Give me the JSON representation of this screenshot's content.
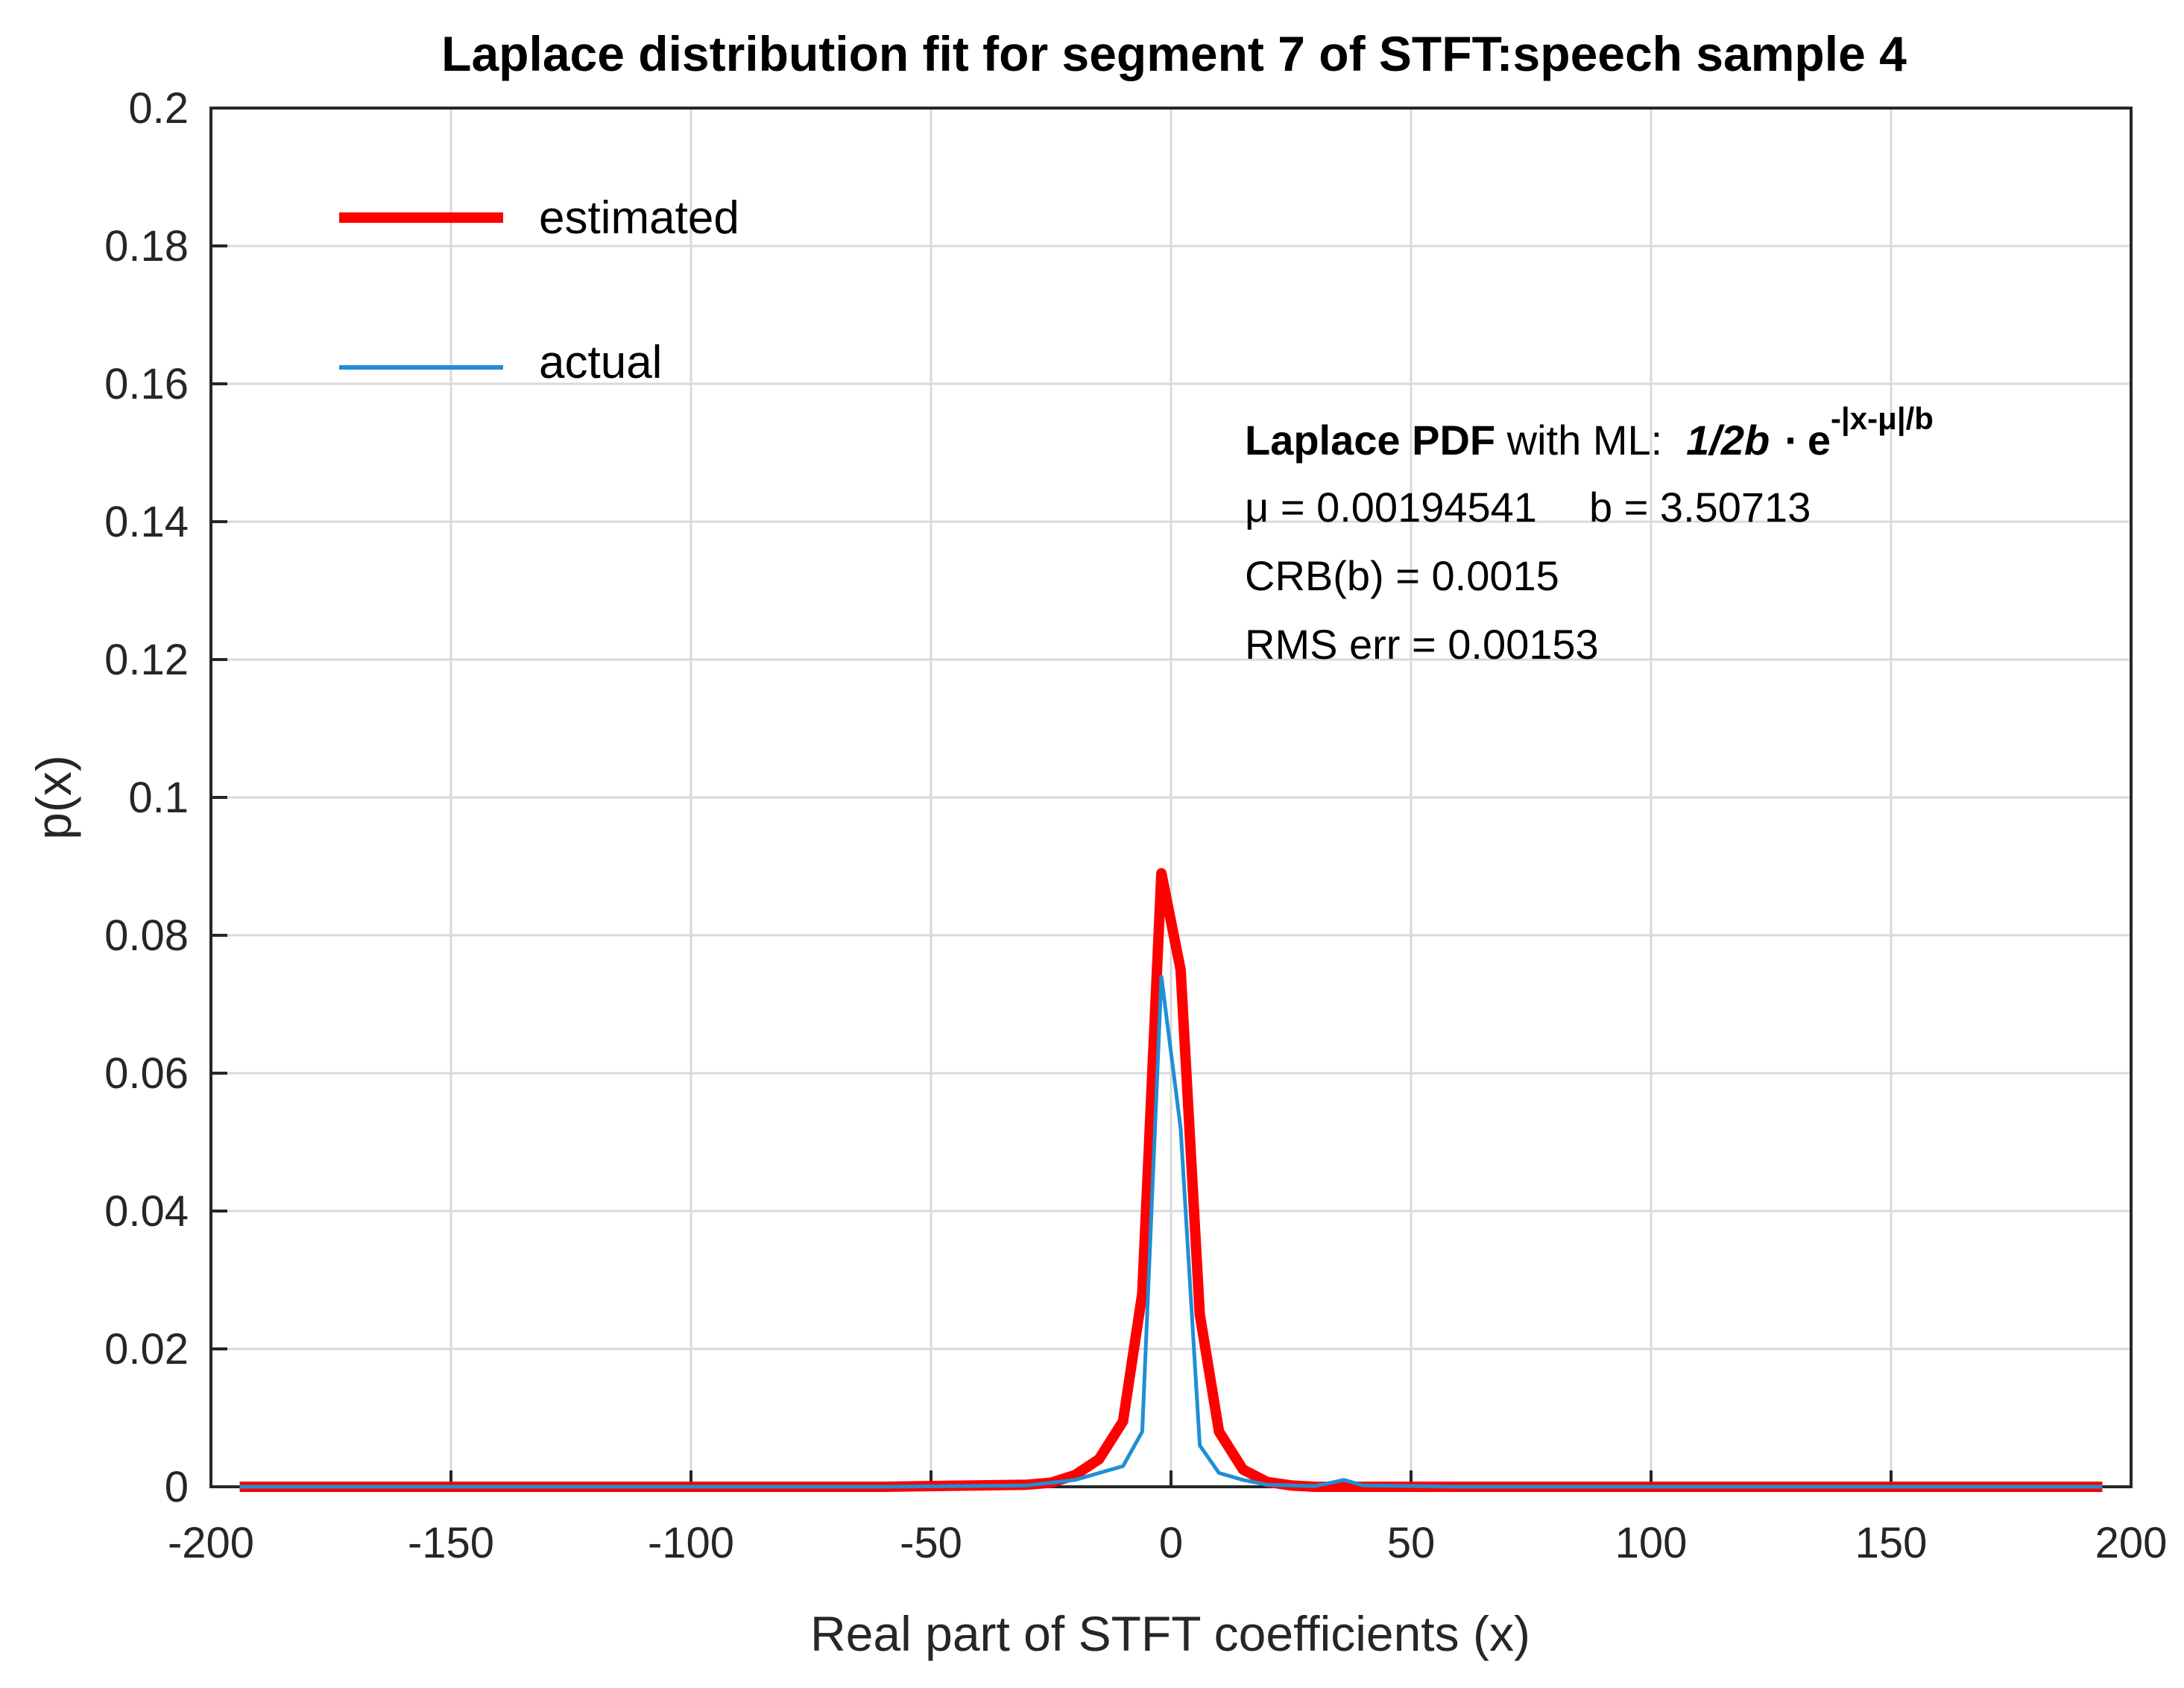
{
  "chart_data": {
    "type": "line",
    "title": "Laplace distribution fit for segment 7 of STFT:speech sample 4",
    "xlabel": "Real part of STFT coefficients (x)",
    "ylabel": "p(x)",
    "xlim": [
      -200,
      200
    ],
    "ylim": [
      0,
      0.2
    ],
    "grid": true,
    "legend_position": "top-left",
    "x_ticks": [
      -200,
      -150,
      -100,
      -50,
      0,
      50,
      100,
      150,
      200
    ],
    "x_tick_labels": [
      "-200",
      "-150",
      "-100",
      "-50",
      "0",
      "50",
      "100",
      "150",
      "200"
    ],
    "y_ticks": [
      0,
      0.02,
      0.04,
      0.06,
      0.08,
      0.1,
      0.12,
      0.14,
      0.16,
      0.18,
      0.2
    ],
    "y_tick_labels": [
      "0",
      "0.02",
      "0.04",
      "0.06",
      "0.08",
      "0.1",
      "0.12",
      "0.14",
      "0.16",
      "0.18",
      "0.2"
    ],
    "series": [
      {
        "name": "estimated",
        "color": "#ff0000",
        "x": [
          -194,
          -60,
          -30,
          -25,
          -20,
          -15,
          -10,
          -6,
          -2,
          2,
          6,
          10,
          15,
          20,
          25,
          30,
          60,
          194
        ],
        "y": [
          0,
          0,
          0.0003,
          0.0006,
          0.0017,
          0.004,
          0.0095,
          0.028,
          0.089,
          0.075,
          0.025,
          0.008,
          0.0025,
          0.0007,
          0.0002,
          0,
          0,
          0
        ]
      },
      {
        "name": "actual",
        "color": "#1f8fd4",
        "x": [
          -194,
          -60,
          -30,
          -20,
          -15,
          -10,
          -6,
          -2,
          2,
          6,
          10,
          15,
          20,
          30,
          36,
          40,
          60,
          194
        ],
        "y": [
          0,
          0,
          0.0002,
          0.001,
          0.002,
          0.003,
          0.008,
          0.074,
          0.052,
          0.006,
          0.002,
          0.001,
          0.0003,
          0.0001,
          0.001,
          0.0002,
          0,
          0
        ]
      }
    ],
    "legend": [
      {
        "label": "estimated",
        "color": "#ff0000"
      },
      {
        "label": "actual",
        "color": "#1f8fd4"
      }
    ],
    "annotation": {
      "line1_bold": "Laplace PDF",
      "line1_text": " with ML:",
      "line1_formula": "1/2b",
      "line1_dot": "·",
      "line1_e": "e",
      "line1_exp": "-|x-μ|/b",
      "line2_mu": "μ = 0.00194541",
      "line2_b": "b = 3.50713",
      "line3": "CRB(b) = 0.0015",
      "line4": "RMS err = 0.00153"
    }
  }
}
